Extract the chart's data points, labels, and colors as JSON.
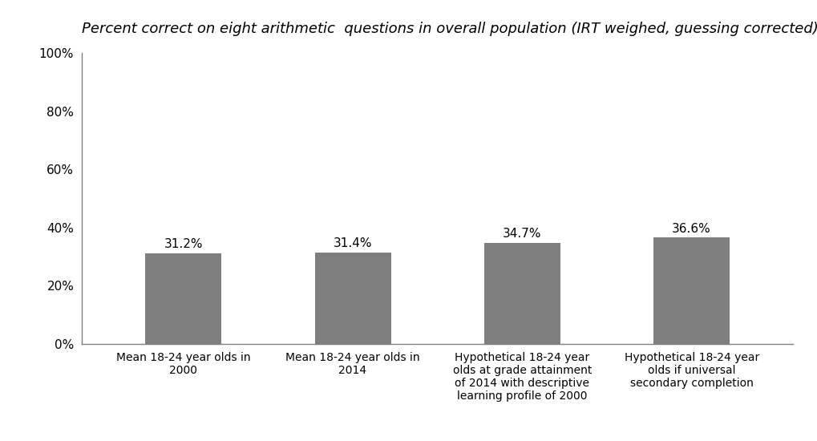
{
  "title": "Percent correct on eight arithmetic  questions in overall population (IRT weighed, guessing corrected)",
  "categories": [
    "Mean 18-24 year olds in\n2000",
    "Mean 18-24 year olds in\n2014",
    "Hypothetical 18-24 year\nolds at grade attainment\nof 2014 with descriptive\nlearning profile of 2000",
    "Hypothetical 18-24 year\nolds if universal\nsecondary completion"
  ],
  "values": [
    31.2,
    31.4,
    34.7,
    36.6
  ],
  "bar_color": "#7f7f7f",
  "bar_labels": [
    "31.2%",
    "31.4%",
    "34.7%",
    "36.6%"
  ],
  "ylim": [
    0,
    100
  ],
  "yticks": [
    0,
    20,
    40,
    60,
    80,
    100
  ],
  "ytick_labels": [
    "0%",
    "20%",
    "40%",
    "60%",
    "80%",
    "100%"
  ],
  "title_fontsize": 13,
  "title_style": "italic",
  "background_color": "#ffffff",
  "bar_width": 0.45,
  "spine_color": "#808080",
  "tick_label_fontsize": 11,
  "bar_label_fontsize": 11,
  "xtick_fontsize": 10
}
